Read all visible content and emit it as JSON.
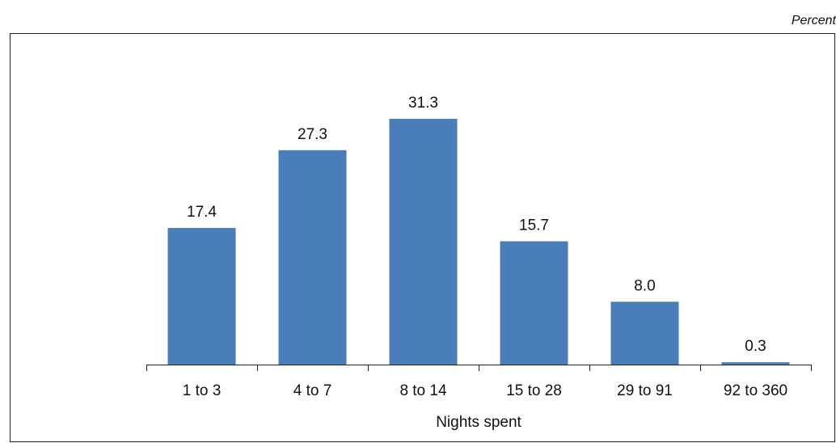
{
  "chart_data": {
    "type": "bar",
    "unit_label": "Percent",
    "xlabel": "Nights spent",
    "categories": [
      "1 to 3",
      "4 to 7",
      "8 to 14",
      "15 to 28",
      "29 to 91",
      "92 to 360"
    ],
    "values": [
      17.4,
      27.3,
      31.3,
      15.7,
      8.0,
      0.3
    ],
    "value_labels": [
      "17.4",
      "27.3",
      "31.3",
      "15.7",
      "8.0",
      "0.3"
    ],
    "ylim": [
      0,
      35
    ],
    "bar_color": "#4a7ebb",
    "grid": false,
    "legend": "none"
  }
}
